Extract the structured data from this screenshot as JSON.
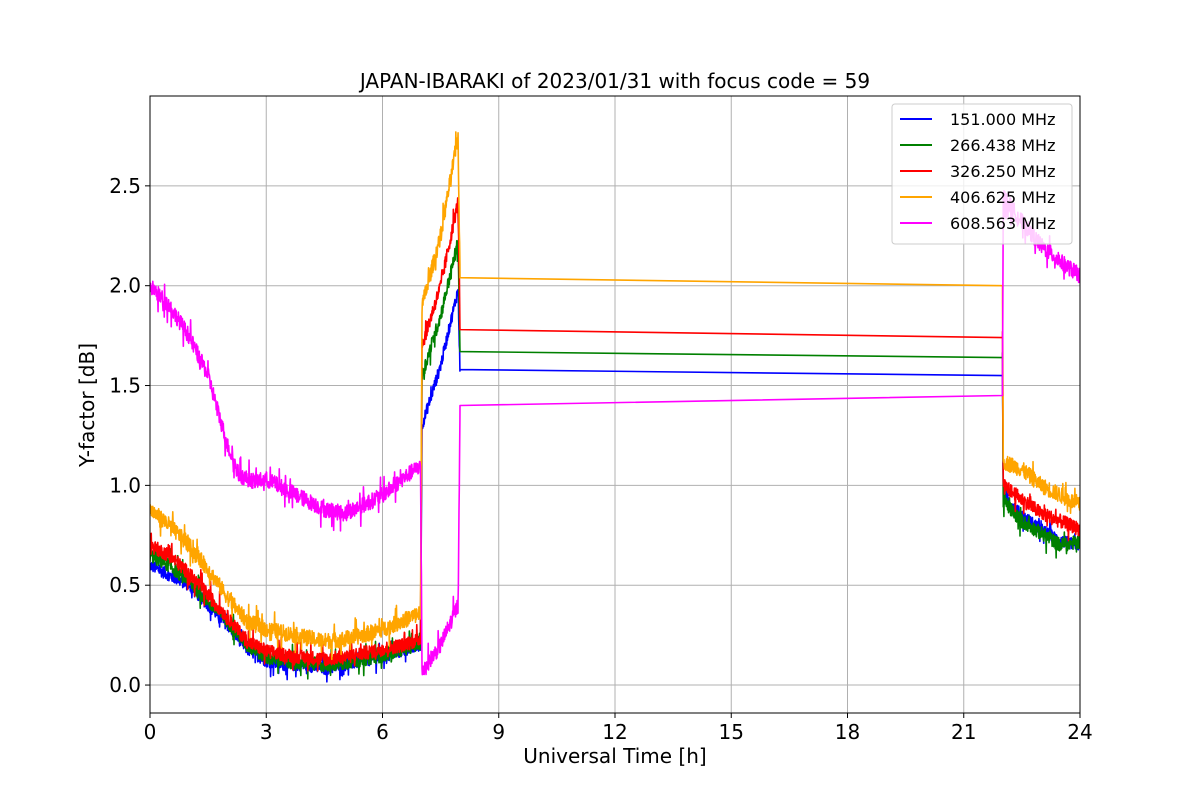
{
  "chart_data": {
    "type": "line",
    "title": "JAPAN-IBARAKI of 2023/01/31 with focus code = 59",
    "xlabel": "Universal Time [h]",
    "ylabel": "Y-factor [dB]",
    "xlim": [
      0,
      24
    ],
    "ylim": [
      -0.14,
      2.95
    ],
    "xticks": [
      0,
      3,
      6,
      9,
      12,
      15,
      18,
      21,
      24
    ],
    "xtick_labels": [
      "0",
      "3",
      "6",
      "9",
      "12",
      "15",
      "18",
      "21",
      "24"
    ],
    "yticks": [
      0.0,
      0.5,
      1.0,
      1.5,
      2.0,
      2.5
    ],
    "ytick_labels": [
      "0.0",
      "0.5",
      "1.0",
      "1.5",
      "2.0",
      "2.5"
    ],
    "grid": true,
    "legend_position": "top-right",
    "series": [
      {
        "name": "151.000 MHz",
        "color": "#0000ff",
        "noise": 0.03,
        "points": [
          [
            0,
            0.6
          ],
          [
            0.5,
            0.55
          ],
          [
            1,
            0.5
          ],
          [
            1.5,
            0.4
          ],
          [
            2,
            0.3
          ],
          [
            2.5,
            0.18
          ],
          [
            3,
            0.12
          ],
          [
            3.5,
            0.1
          ],
          [
            4,
            0.1
          ],
          [
            4.5,
            0.08
          ],
          [
            5,
            0.1
          ],
          [
            5.5,
            0.12
          ],
          [
            6,
            0.14
          ],
          [
            6.5,
            0.17
          ],
          [
            6.98,
            0.2
          ],
          [
            7.02,
            1.3
          ],
          [
            7.5,
            1.6
          ],
          [
            7.95,
            1.98
          ],
          [
            8.0,
            1.58
          ],
          [
            22.0,
            1.55
          ],
          [
            22.02,
            0.95
          ],
          [
            22.5,
            0.85
          ],
          [
            23,
            0.78
          ],
          [
            23.5,
            0.72
          ],
          [
            24,
            0.7
          ]
        ]
      },
      {
        "name": "266.438 MHz",
        "color": "#008000",
        "noise": 0.035,
        "points": [
          [
            0,
            0.65
          ],
          [
            0.5,
            0.6
          ],
          [
            1,
            0.52
          ],
          [
            1.5,
            0.42
          ],
          [
            2,
            0.32
          ],
          [
            2.5,
            0.2
          ],
          [
            3,
            0.14
          ],
          [
            3.5,
            0.12
          ],
          [
            4,
            0.11
          ],
          [
            4.5,
            0.1
          ],
          [
            5,
            0.11
          ],
          [
            5.5,
            0.13
          ],
          [
            6,
            0.15
          ],
          [
            6.5,
            0.18
          ],
          [
            6.98,
            0.21
          ],
          [
            7.02,
            1.55
          ],
          [
            7.5,
            1.85
          ],
          [
            7.95,
            2.22
          ],
          [
            8.0,
            1.67
          ],
          [
            22.0,
            1.64
          ],
          [
            22.02,
            0.92
          ],
          [
            22.5,
            0.82
          ],
          [
            23,
            0.76
          ],
          [
            23.5,
            0.7
          ],
          [
            24,
            0.72
          ]
        ]
      },
      {
        "name": "326.250 MHz",
        "color": "#ff0000",
        "noise": 0.035,
        "points": [
          [
            0,
            0.7
          ],
          [
            0.5,
            0.65
          ],
          [
            1,
            0.56
          ],
          [
            1.5,
            0.45
          ],
          [
            2,
            0.34
          ],
          [
            2.5,
            0.22
          ],
          [
            3,
            0.17
          ],
          [
            3.5,
            0.15
          ],
          [
            4,
            0.14
          ],
          [
            4.5,
            0.13
          ],
          [
            5,
            0.14
          ],
          [
            5.5,
            0.16
          ],
          [
            6,
            0.18
          ],
          [
            6.5,
            0.2
          ],
          [
            6.98,
            0.23
          ],
          [
            7.02,
            1.7
          ],
          [
            7.5,
            2.0
          ],
          [
            7.95,
            2.42
          ],
          [
            8.0,
            1.78
          ],
          [
            22.0,
            1.74
          ],
          [
            22.02,
            1.0
          ],
          [
            22.5,
            0.93
          ],
          [
            23,
            0.86
          ],
          [
            23.5,
            0.82
          ],
          [
            24,
            0.78
          ]
        ]
      },
      {
        "name": "406.625 MHz",
        "color": "#ffa500",
        "noise": 0.04,
        "points": [
          [
            0,
            0.88
          ],
          [
            0.5,
            0.8
          ],
          [
            1,
            0.7
          ],
          [
            1.5,
            0.58
          ],
          [
            2,
            0.44
          ],
          [
            2.5,
            0.32
          ],
          [
            3,
            0.28
          ],
          [
            3.5,
            0.26
          ],
          [
            4,
            0.24
          ],
          [
            4.5,
            0.22
          ],
          [
            5,
            0.23
          ],
          [
            5.5,
            0.25
          ],
          [
            6,
            0.28
          ],
          [
            6.5,
            0.32
          ],
          [
            6.98,
            0.36
          ],
          [
            7.02,
            1.9
          ],
          [
            7.5,
            2.25
          ],
          [
            7.95,
            2.75
          ],
          [
            8.0,
            2.04
          ],
          [
            22.0,
            2.0
          ],
          [
            22.02,
            1.12
          ],
          [
            22.5,
            1.08
          ],
          [
            23,
            1.0
          ],
          [
            23.5,
            0.95
          ],
          [
            24,
            0.9
          ]
        ]
      },
      {
        "name": "608.563 MHz",
        "color": "#ff00ff",
        "noise": 0.04,
        "points": [
          [
            0,
            2.0
          ],
          [
            0.5,
            1.9
          ],
          [
            1,
            1.75
          ],
          [
            1.5,
            1.55
          ],
          [
            2,
            1.2
          ],
          [
            2.3,
            1.05
          ],
          [
            2.7,
            1.02
          ],
          [
            3,
            1.03
          ],
          [
            3.5,
            0.98
          ],
          [
            4,
            0.93
          ],
          [
            4.5,
            0.88
          ],
          [
            5,
            0.86
          ],
          [
            5.5,
            0.9
          ],
          [
            6,
            0.95
          ],
          [
            6.5,
            1.03
          ],
          [
            6.98,
            1.1
          ],
          [
            7.02,
            0.07
          ],
          [
            7.5,
            0.2
          ],
          [
            7.95,
            0.4
          ],
          [
            8.0,
            1.4
          ],
          [
            22.0,
            1.45
          ],
          [
            22.02,
            2.45
          ],
          [
            22.5,
            2.32
          ],
          [
            23,
            2.2
          ],
          [
            23.5,
            2.12
          ],
          [
            24,
            2.05
          ]
        ]
      }
    ]
  }
}
